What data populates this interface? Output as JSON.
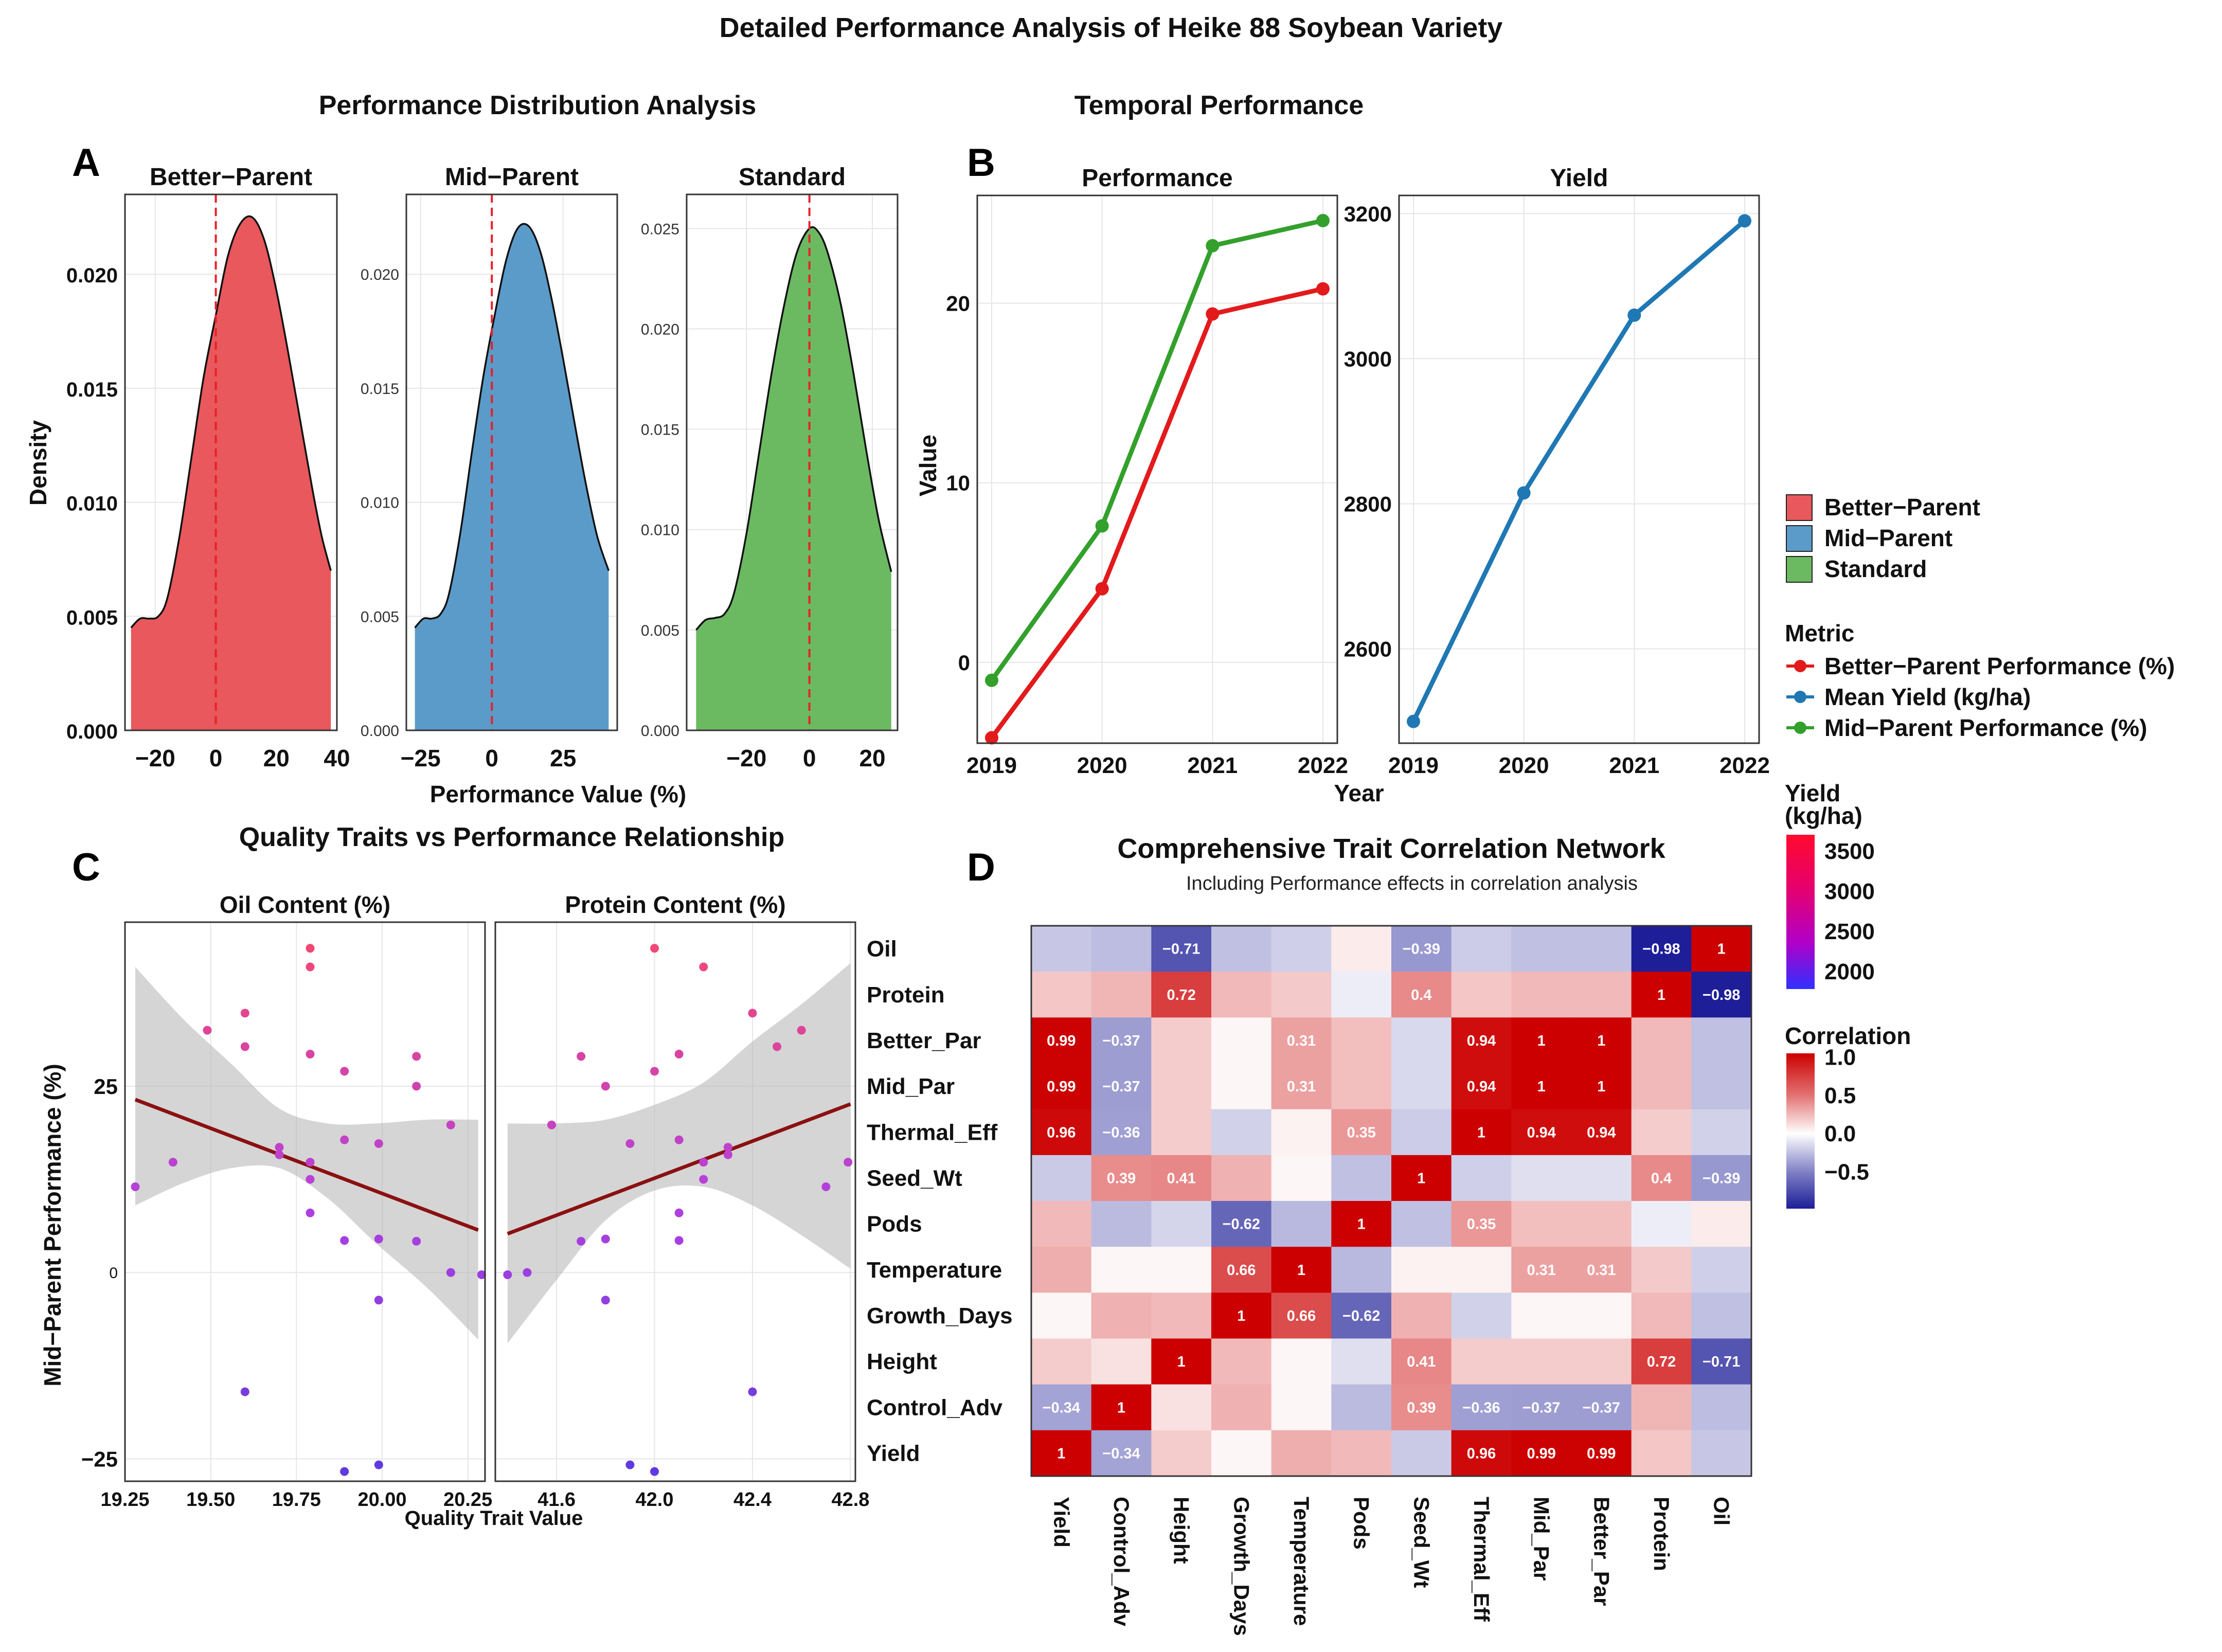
{
  "figure": {
    "title": "Detailed Performance Analysis of Heike 88 Soybean Variety",
    "legend": {
      "fill_entries": [
        "Better−Parent",
        "Mid−Parent",
        "Standard"
      ],
      "fill_colors": [
        "#E8585C",
        "#5B9BC9",
        "#6BBA62"
      ],
      "metric_title": "Metric",
      "metric_entries": [
        "Better−Parent Performance  (%)",
        "Mean Yield (kg/ha)",
        "Mid−Parent Performance  (%)"
      ],
      "metric_colors": [
        "#E31A1C",
        "#1F78B4",
        "#33A02C"
      ],
      "yield_title": [
        "Yield",
        "(kg/ha)"
      ],
      "yield_ticks": [
        "3500",
        "3000",
        "2500",
        "2000"
      ],
      "corr_title": "Correlation",
      "corr_ticks": [
        "1.0",
        "0.5",
        "0.0",
        "−0.5"
      ]
    }
  },
  "chart_data": [
    {
      "id": "A",
      "type": "area",
      "panel_label": "A",
      "section_title": "Performance Distribution Analysis",
      "ylabel": "Density",
      "xlabel": "Performance Value (%)",
      "reference_line_x": 0,
      "facets": [
        {
          "title": "Better−Parent",
          "color": "#E8585C",
          "xlim": [
            -30,
            40
          ],
          "ylim": [
            0,
            0.0235
          ],
          "xticks": [
            "−20",
            "0",
            "20",
            "40"
          ],
          "xtick_values": [
            -20,
            0,
            20,
            40
          ],
          "yticks": [
            "0.000",
            "0.005",
            "0.010",
            "0.015",
            "0.020"
          ],
          "ytick_values": [
            0,
            0.005,
            0.01,
            0.015,
            0.02
          ],
          "x": [
            -28,
            -25,
            -22,
            -19,
            -16,
            -12,
            -8,
            -4,
            0,
            4,
            8,
            12,
            16,
            20,
            24,
            28,
            32,
            35,
            38
          ],
          "y": [
            0.0045,
            0.0049,
            0.0049,
            0.005,
            0.0058,
            0.0085,
            0.012,
            0.0155,
            0.0182,
            0.0208,
            0.0222,
            0.0225,
            0.0215,
            0.0193,
            0.0165,
            0.0135,
            0.0105,
            0.0085,
            0.007
          ]
        },
        {
          "title": "Mid−Parent",
          "color": "#5B9BC9",
          "xlim": [
            -30,
            44
          ],
          "ylim": [
            0,
            0.0235
          ],
          "xticks": [
            "−25",
            "0",
            "25"
          ],
          "xtick_values": [
            -25,
            0,
            25
          ],
          "yticks": [
            "0.000",
            "0.005",
            "0.010",
            "0.015",
            "0.020"
          ],
          "ytick_values": [
            0,
            0.005,
            0.01,
            0.015,
            0.02
          ],
          "x": [
            -27,
            -24,
            -21,
            -18,
            -15,
            -11,
            -7,
            -3,
            1,
            5,
            9,
            13,
            17,
            21,
            25,
            29,
            33,
            37,
            41
          ],
          "y": [
            0.0045,
            0.0049,
            0.0049,
            0.0051,
            0.006,
            0.0087,
            0.0122,
            0.0155,
            0.0182,
            0.0206,
            0.022,
            0.0221,
            0.021,
            0.0189,
            0.0163,
            0.0135,
            0.0108,
            0.0085,
            0.007
          ]
        },
        {
          "title": "Standard",
          "color": "#6BBA62",
          "xlim": [
            -39,
            28
          ],
          "ylim": [
            0,
            0.0267
          ],
          "xticks": [
            "−20",
            "0",
            "20"
          ],
          "xtick_values": [
            -20,
            0,
            20
          ],
          "yticks": [
            "0.000",
            "0.005",
            "0.010",
            "0.015",
            "0.020",
            "0.025"
          ],
          "ytick_values": [
            0,
            0.005,
            0.01,
            0.015,
            0.02,
            0.025
          ],
          "x": [
            -36,
            -33,
            -30,
            -27,
            -24,
            -20,
            -16,
            -12,
            -8,
            -4,
            0,
            3,
            6,
            10,
            14,
            18,
            22,
            26
          ],
          "y": [
            0.005,
            0.0055,
            0.0056,
            0.0058,
            0.0068,
            0.0098,
            0.0138,
            0.0178,
            0.0212,
            0.0238,
            0.025,
            0.0248,
            0.0237,
            0.0212,
            0.0178,
            0.014,
            0.0105,
            0.0079
          ]
        }
      ]
    },
    {
      "id": "B",
      "type": "line",
      "panel_label": "B",
      "section_title": "Temporal Performance",
      "xlabel": "Year",
      "ylabel": "Value",
      "facets": [
        {
          "title": "Performance",
          "ylim": [
            -4.5,
            26
          ],
          "yticks": [
            "0",
            "10",
            "20"
          ],
          "ytick_values": [
            0,
            10,
            20
          ],
          "categories": [
            "2019",
            "2020",
            "2021",
            "2022"
          ],
          "series": [
            {
              "name": "Better−Parent Performance  (%)",
              "color": "#E31A1C",
              "values": [
                -4.2,
                4.1,
                19.4,
                20.8
              ]
            },
            {
              "name": "Mid−Parent Performance  (%)",
              "color": "#33A02C",
              "values": [
                -1.0,
                7.6,
                23.2,
                24.6
              ]
            }
          ]
        },
        {
          "title": "Yield",
          "ylim": [
            2470,
            3225
          ],
          "yticks": [
            "2600",
            "2800",
            "3000",
            "3200"
          ],
          "ytick_values": [
            2600,
            2800,
            3000,
            3200
          ],
          "categories": [
            "2019",
            "2020",
            "2021",
            "2022"
          ],
          "series": [
            {
              "name": "Mean Yield (kg/ha)",
              "color": "#1F78B4",
              "values": [
                2500,
                2815,
                3060,
                3190
              ]
            }
          ]
        }
      ]
    },
    {
      "id": "C",
      "type": "scatter",
      "panel_label": "C",
      "section_title": "Quality Traits vs Performance Relationship",
      "ylabel": "Mid−Parent Performance  (%)",
      "xlabel": "Quality Trait Value",
      "ylim": [
        -28,
        47
      ],
      "yticks": [
        "−25",
        "0",
        "25"
      ],
      "ytick_values": [
        -25,
        0,
        25
      ],
      "facets": [
        {
          "title": "Oil Content (%)",
          "xlim": [
            19.25,
            20.3
          ],
          "xticks": [
            "19.25",
            "19.50",
            "19.75",
            "20.00",
            "20.25"
          ],
          "xtick_values": [
            19.25,
            19.5,
            19.75,
            20.0,
            20.25
          ],
          "points": [
            {
              "x": 19.28,
              "y": 11.5
            },
            {
              "x": 19.39,
              "y": 14.8
            },
            {
              "x": 19.49,
              "y": 32.5
            },
            {
              "x": 19.6,
              "y": 34.8
            },
            {
              "x": 19.6,
              "y": 30.3
            },
            {
              "x": 19.6,
              "y": -16.0
            },
            {
              "x": 19.7,
              "y": 16.8
            },
            {
              "x": 19.7,
              "y": 15.8
            },
            {
              "x": 19.79,
              "y": 43.5
            },
            {
              "x": 19.79,
              "y": 41.0
            },
            {
              "x": 19.79,
              "y": 29.3
            },
            {
              "x": 19.79,
              "y": 14.8
            },
            {
              "x": 19.79,
              "y": 12.5
            },
            {
              "x": 19.79,
              "y": 8.0
            },
            {
              "x": 19.89,
              "y": 27.0
            },
            {
              "x": 19.89,
              "y": 17.8
            },
            {
              "x": 19.89,
              "y": 4.3
            },
            {
              "x": 19.89,
              "y": -26.7
            },
            {
              "x": 19.99,
              "y": 17.3
            },
            {
              "x": 19.99,
              "y": 4.5
            },
            {
              "x": 19.99,
              "y": -3.7
            },
            {
              "x": 19.99,
              "y": -25.8
            },
            {
              "x": 20.1,
              "y": 29.0
            },
            {
              "x": 20.1,
              "y": 25.0
            },
            {
              "x": 20.1,
              "y": 4.2
            },
            {
              "x": 20.2,
              "y": 19.8
            },
            {
              "x": 20.2,
              "y": 0.0
            },
            {
              "x": 20.29,
              "y": -0.3
            }
          ],
          "fit": {
            "x": [
              19.28,
              20.28
            ],
            "y": [
              23.2,
              5.7
            ]
          },
          "band_lower": [
            9.0,
            12.0,
            14.0,
            14.0,
            10.0,
            4.0,
            -2.0,
            -9.0
          ],
          "band_upper": [
            41.0,
            34.0,
            28.0,
            22.0,
            20.0,
            20.0,
            20.5,
            20.5
          ],
          "band_x": [
            19.28,
            19.42,
            19.56,
            19.7,
            19.84,
            19.98,
            20.13,
            20.28
          ]
        },
        {
          "title": "Protein Content (%)",
          "xlim": [
            41.35,
            42.82
          ],
          "xticks": [
            "41.6",
            "42.0",
            "42.4",
            "42.8"
          ],
          "xtick_values": [
            41.6,
            42.0,
            42.4,
            42.8
          ],
          "points": [
            {
              "x": 41.4,
              "y": -0.3
            },
            {
              "x": 41.48,
              "y": 0.0
            },
            {
              "x": 41.58,
              "y": 19.8
            },
            {
              "x": 41.7,
              "y": 29.0
            },
            {
              "x": 41.7,
              "y": 4.2
            },
            {
              "x": 41.8,
              "y": 25.0
            },
            {
              "x": 41.8,
              "y": 4.5
            },
            {
              "x": 41.8,
              "y": -3.7
            },
            {
              "x": 41.9,
              "y": 17.3
            },
            {
              "x": 41.9,
              "y": -25.8
            },
            {
              "x": 42.0,
              "y": 43.5
            },
            {
              "x": 42.0,
              "y": 27.0
            },
            {
              "x": 42.0,
              "y": -26.7
            },
            {
              "x": 42.1,
              "y": 29.3
            },
            {
              "x": 42.1,
              "y": 17.8
            },
            {
              "x": 42.1,
              "y": 8.0
            },
            {
              "x": 42.1,
              "y": 4.3
            },
            {
              "x": 42.2,
              "y": 41.0
            },
            {
              "x": 42.2,
              "y": 14.8
            },
            {
              "x": 42.2,
              "y": 12.5
            },
            {
              "x": 42.3,
              "y": 16.8
            },
            {
              "x": 42.3,
              "y": 15.8
            },
            {
              "x": 42.4,
              "y": 34.8
            },
            {
              "x": 42.4,
              "y": -16.0
            },
            {
              "x": 42.5,
              "y": 30.3
            },
            {
              "x": 42.6,
              "y": 32.5
            },
            {
              "x": 42.7,
              "y": 11.5
            },
            {
              "x": 42.79,
              "y": 14.8
            }
          ],
          "fit": {
            "x": [
              41.4,
              42.8
            ],
            "y": [
              5.2,
              22.6
            ]
          },
          "band_lower": [
            -9.5,
            -1.0,
            7.0,
            11.0,
            11.5,
            9.0,
            5.0,
            0.5
          ],
          "band_upper": [
            20.0,
            20.0,
            20.5,
            22.5,
            25.5,
            31.0,
            36.0,
            41.5
          ],
          "band_x": [
            41.4,
            41.6,
            41.8,
            42.0,
            42.2,
            42.4,
            42.6,
            42.8
          ]
        }
      ]
    },
    {
      "id": "D",
      "type": "heatmap",
      "panel_label": "D",
      "title": "Comprehensive Trait Correlation Network",
      "subtitle": "Including Performance  effects in correlation analysis",
      "row_labels": [
        "Oil",
        "Protein",
        "Better_Par",
        "Mid_Par",
        "Thermal_Eff",
        "Seed_Wt",
        "Pods",
        "Temperature",
        "Growth_Days",
        "Height",
        "Control_Adv",
        "Yield"
      ],
      "col_labels": [
        "Yield",
        "Control_Adv",
        "Height",
        "Growth_Days",
        "Temperature",
        "Pods",
        "Seed_Wt",
        "Thermal_Eff",
        "Mid_Par",
        "Better_Par",
        "Protein",
        "Oil"
      ],
      "values": [
        [
          -0.19,
          -0.23,
          -0.71,
          -0.22,
          -0.16,
          0.05,
          -0.39,
          -0.17,
          -0.22,
          -0.22,
          -0.98,
          1.0
        ],
        [
          0.17,
          0.23,
          0.72,
          0.22,
          0.16,
          -0.05,
          0.4,
          0.17,
          0.22,
          0.22,
          1.0,
          -0.98
        ],
        [
          0.99,
          -0.37,
          0.15,
          0.02,
          0.31,
          0.2,
          -0.12,
          0.94,
          1.0,
          1.0,
          0.22,
          -0.22
        ],
        [
          0.99,
          -0.37,
          0.15,
          0.02,
          0.31,
          0.2,
          -0.12,
          0.94,
          1.0,
          1.0,
          0.22,
          -0.22
        ],
        [
          0.96,
          -0.36,
          0.15,
          -0.15,
          0.03,
          0.35,
          -0.17,
          1.0,
          0.94,
          0.94,
          0.15,
          -0.15
        ],
        [
          -0.18,
          0.39,
          0.41,
          0.25,
          0.02,
          -0.22,
          1.0,
          -0.16,
          -0.1,
          -0.1,
          0.4,
          -0.39
        ],
        [
          0.22,
          -0.24,
          -0.14,
          -0.62,
          -0.25,
          1.0,
          -0.22,
          0.35,
          0.2,
          0.2,
          -0.05,
          0.05
        ],
        [
          0.26,
          0.02,
          0.02,
          0.66,
          1.0,
          -0.25,
          0.03,
          0.03,
          0.31,
          0.31,
          0.16,
          -0.16
        ],
        [
          0.02,
          0.25,
          0.22,
          1.0,
          0.66,
          -0.62,
          0.25,
          -0.15,
          0.02,
          0.02,
          0.22,
          -0.22
        ],
        [
          0.15,
          0.08,
          1.0,
          0.22,
          0.02,
          -0.1,
          0.41,
          0.15,
          0.15,
          0.15,
          0.72,
          -0.71
        ],
        [
          -0.34,
          1.0,
          0.08,
          0.25,
          0.02,
          -0.24,
          0.39,
          -0.36,
          -0.37,
          -0.37,
          0.23,
          -0.23
        ],
        [
          1.0,
          -0.34,
          0.15,
          0.02,
          0.26,
          0.22,
          -0.18,
          0.96,
          0.99,
          0.99,
          0.17,
          -0.19
        ]
      ],
      "labeled_threshold": 0.3
    }
  ]
}
